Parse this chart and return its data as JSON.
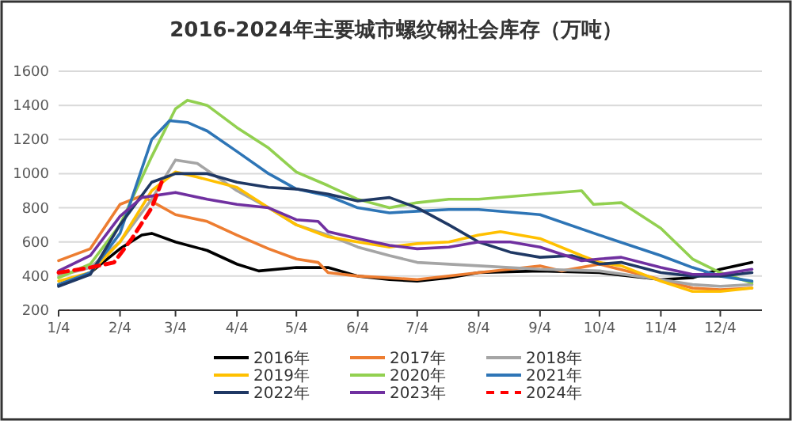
{
  "chart_data": {
    "type": "line",
    "title": "2016-2024年主要城市螺纹钢社会库存（万吨）",
    "xlim": [
      "--01-04",
      "--12-25"
    ],
    "xticks": [
      {
        "value": "--01-04",
        "label": "1/4"
      },
      {
        "value": "--02-04",
        "label": "2/4"
      },
      {
        "value": "--03-04",
        "label": "3/4"
      },
      {
        "value": "--04-04",
        "label": "4/4"
      },
      {
        "value": "--05-04",
        "label": "5/4"
      },
      {
        "value": "--06-04",
        "label": "6/4"
      },
      {
        "value": "--07-04",
        "label": "7/4"
      },
      {
        "value": "--08-04",
        "label": "8/4"
      },
      {
        "value": "--09-04",
        "label": "9/4"
      },
      {
        "value": "--10-04",
        "label": "10/4"
      },
      {
        "value": "--11-04",
        "label": "11/4"
      },
      {
        "value": "--12-04",
        "label": "12/4"
      }
    ],
    "ylim": [
      200,
      1600
    ],
    "yticks": [
      200,
      400,
      600,
      800,
      1000,
      1200,
      1400,
      1600
    ],
    "grid": "y",
    "legend": "bottom",
    "series": [
      {
        "name": "2016年",
        "color": "#000000",
        "x": [
          "--01-04",
          "--01-20",
          "--02-04",
          "--02-15",
          "--02-20",
          "--03-04",
          "--03-20",
          "--04-04",
          "--04-15",
          "--05-04",
          "--05-20",
          "--06-04",
          "--06-20",
          "--07-04",
          "--07-20",
          "--08-04",
          "--09-04",
          "--10-04",
          "--11-04",
          "--11-20",
          "--12-04",
          "--12-20"
        ],
        "values": [
          350,
          420,
          560,
          640,
          650,
          600,
          550,
          470,
          430,
          450,
          450,
          400,
          380,
          370,
          390,
          420,
          430,
          420,
          380,
          390,
          440,
          480
        ]
      },
      {
        "name": "2017年",
        "color": "#ed7d31",
        "x": [
          "--01-04",
          "--01-20",
          "--02-04",
          "--02-15",
          "--03-04",
          "--03-20",
          "--04-04",
          "--04-20",
          "--05-04",
          "--05-15",
          "--05-20",
          "--06-04",
          "--07-04",
          "--08-04",
          "--09-04",
          "--09-15",
          "--10-04",
          "--11-04",
          "--11-20",
          "--12-04",
          "--12-20"
        ],
        "values": [
          490,
          560,
          820,
          870,
          760,
          720,
          640,
          560,
          500,
          480,
          420,
          400,
          380,
          420,
          460,
          430,
          470,
          380,
          330,
          320,
          330
        ]
      },
      {
        "name": "2018年",
        "color": "#a5a5a5",
        "x": [
          "--01-04",
          "--01-20",
          "--02-04",
          "--02-20",
          "--03-04",
          "--03-15",
          "--04-04",
          "--04-20",
          "--05-04",
          "--05-20",
          "--06-04",
          "--06-20",
          "--07-04",
          "--08-04",
          "--09-04",
          "--10-04",
          "--11-04",
          "--11-20",
          "--12-04",
          "--12-20"
        ],
        "values": [
          400,
          450,
          600,
          850,
          1080,
          1060,
          900,
          800,
          700,
          640,
          570,
          520,
          480,
          460,
          440,
          430,
          380,
          350,
          340,
          350
        ]
      },
      {
        "name": "2019年",
        "color": "#ffc000",
        "x": [
          "--01-04",
          "--01-20",
          "--02-04",
          "--02-20",
          "--03-04",
          "--03-15",
          "--04-04",
          "--04-20",
          "--05-04",
          "--05-20",
          "--06-04",
          "--06-20",
          "--07-04",
          "--07-20",
          "--08-04",
          "--08-15",
          "--09-04",
          "--09-25",
          "--10-04",
          "--10-15",
          "--11-04",
          "--11-20",
          "--12-04",
          "--12-20"
        ],
        "values": [
          370,
          420,
          600,
          900,
          1010,
          980,
          920,
          800,
          700,
          630,
          600,
          570,
          590,
          600,
          640,
          660,
          620,
          520,
          480,
          460,
          370,
          310,
          310,
          330
        ]
      },
      {
        "name": "2020年",
        "color": "#92d050",
        "x": [
          "--01-04",
          "--01-20",
          "--02-04",
          "--02-20",
          "--03-04",
          "--03-10",
          "--03-20",
          "--04-04",
          "--04-20",
          "--05-04",
          "--05-20",
          "--06-04",
          "--06-20",
          "--07-04",
          "--07-20",
          "--08-04",
          "--09-04",
          "--09-25",
          "--10-01",
          "--10-15",
          "--11-04",
          "--11-20",
          "--12-04",
          "--12-20"
        ],
        "values": [
          390,
          470,
          700,
          1100,
          1380,
          1430,
          1400,
          1270,
          1150,
          1010,
          930,
          850,
          800,
          830,
          850,
          850,
          880,
          900,
          820,
          830,
          680,
          500,
          420,
          360
        ]
      },
      {
        "name": "2021年",
        "color": "#2e75b6",
        "x": [
          "--01-04",
          "--01-20",
          "--02-04",
          "--02-20",
          "--03-01",
          "--03-10",
          "--03-20",
          "--04-04",
          "--04-20",
          "--05-04",
          "--05-20",
          "--06-04",
          "--06-20",
          "--07-04",
          "--07-20",
          "--08-04",
          "--09-04",
          "--10-04",
          "--11-04",
          "--11-20",
          "--12-04",
          "--12-20"
        ],
        "values": [
          350,
          420,
          650,
          1200,
          1310,
          1300,
          1250,
          1130,
          1000,
          910,
          870,
          800,
          770,
          780,
          790,
          790,
          760,
          640,
          520,
          450,
          400,
          370
        ]
      },
      {
        "name": "2022年",
        "color": "#1f3864",
        "x": [
          "--01-04",
          "--01-20",
          "--02-04",
          "--02-20",
          "--03-04",
          "--03-20",
          "--04-04",
          "--04-20",
          "--05-04",
          "--05-20",
          "--06-04",
          "--06-20",
          "--07-04",
          "--07-20",
          "--08-04",
          "--08-20",
          "--09-04",
          "--09-20",
          "--10-04",
          "--10-15",
          "--11-04",
          "--11-20",
          "--12-04",
          "--12-20"
        ],
        "values": [
          340,
          410,
          700,
          950,
          1000,
          1000,
          950,
          920,
          910,
          880,
          840,
          860,
          800,
          700,
          600,
          540,
          510,
          520,
          470,
          480,
          420,
          400,
          400,
          420
        ]
      },
      {
        "name": "2023年",
        "color": "#7030a0",
        "x": [
          "--01-04",
          "--01-20",
          "--02-04",
          "--02-15",
          "--03-04",
          "--03-20",
          "--04-04",
          "--04-20",
          "--05-04",
          "--05-15",
          "--05-20",
          "--06-04",
          "--06-20",
          "--07-04",
          "--07-20",
          "--08-04",
          "--08-20",
          "--09-04",
          "--09-25",
          "--10-04",
          "--10-15",
          "--11-04",
          "--11-20",
          "--12-04",
          "--12-20"
        ],
        "values": [
          430,
          520,
          750,
          860,
          890,
          850,
          820,
          800,
          730,
          720,
          660,
          620,
          580,
          560,
          570,
          600,
          600,
          570,
          490,
          500,
          510,
          450,
          410,
          410,
          440
        ]
      },
      {
        "name": "2024年",
        "color": "#ff0000",
        "line_style": "dashed",
        "x": [
          "--01-04",
          "--01-20",
          "--02-01",
          "--02-10",
          "--02-20",
          "--02-25"
        ],
        "values": [
          420,
          450,
          480,
          620,
          800,
          950
        ]
      }
    ]
  }
}
